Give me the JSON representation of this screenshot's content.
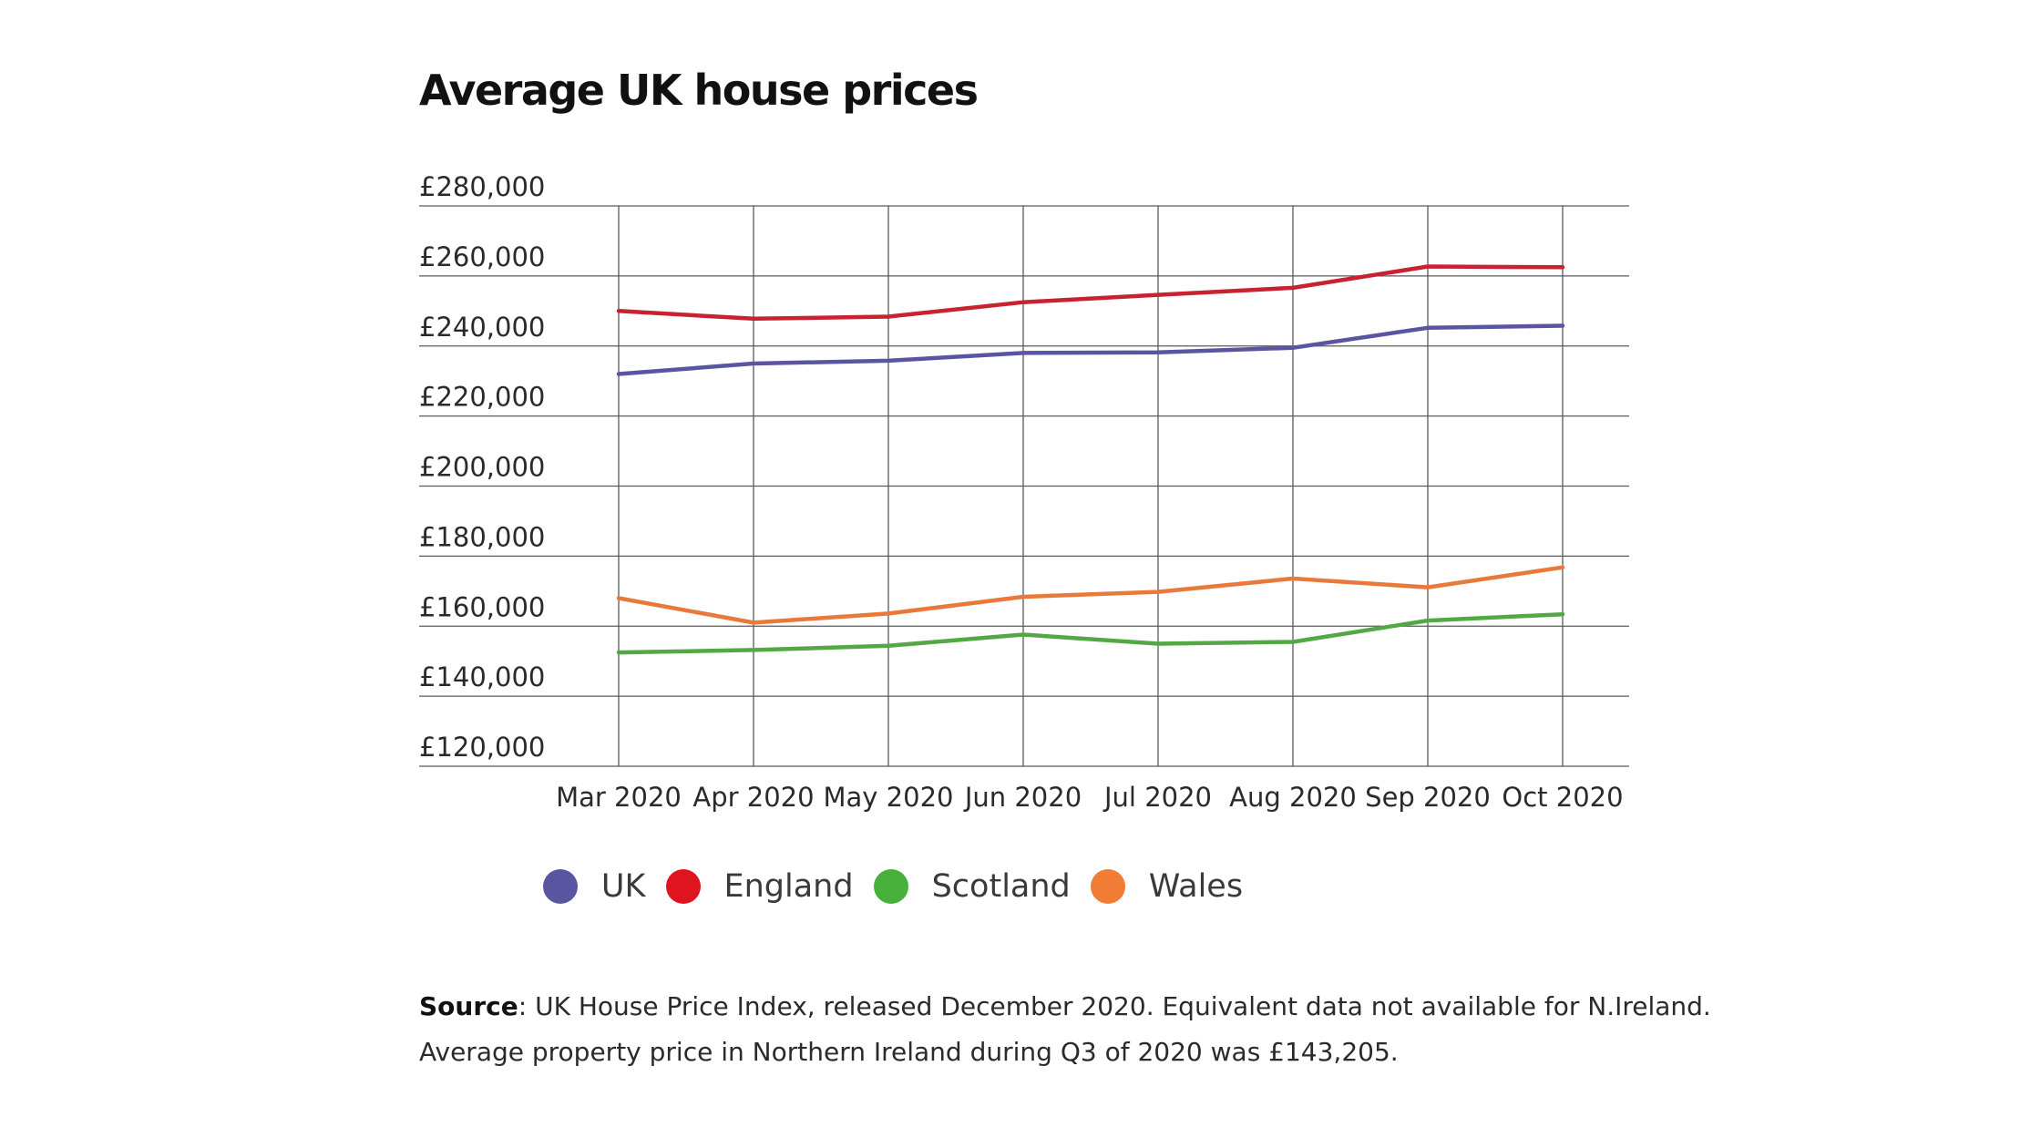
{
  "chart_data": {
    "type": "line",
    "title": "Average UK house prices",
    "xlabel": "",
    "ylabel": "",
    "grid": true,
    "legend_position": "bottom-center",
    "categories": [
      "Mar 2020",
      "Apr 2020",
      "May 2020",
      "Jun 2020",
      "Jul 2020",
      "Aug 2020",
      "Sep 2020",
      "Oct 2020"
    ],
    "ylim": [
      120000,
      280000
    ],
    "yticks": [
      120000,
      140000,
      160000,
      180000,
      200000,
      220000,
      240000,
      260000,
      280000
    ],
    "ytick_labels": [
      "£120,000",
      "£140,000",
      "£160,000",
      "£180,000",
      "£200,000",
      "£220,000",
      "£240,000",
      "£260,000",
      "£280,000"
    ],
    "series": [
      {
        "name": "UK",
        "color": "#5a55a0",
        "values": [
          232000,
          235000,
          235800,
          238000,
          238200,
          239500,
          245200,
          245800
        ]
      },
      {
        "name": "England",
        "color": "#c8212f",
        "values": [
          250000,
          247800,
          248400,
          252500,
          254600,
          256600,
          262700,
          262500
        ]
      },
      {
        "name": "Scotland",
        "color": "#53a845",
        "values": [
          152500,
          153200,
          154400,
          157600,
          155000,
          155500,
          161600,
          163400
        ]
      },
      {
        "name": "Wales",
        "color": "#e8793b",
        "values": [
          168000,
          161000,
          163600,
          168400,
          169800,
          173600,
          171100,
          176800
        ]
      }
    ]
  },
  "legend": {
    "items": [
      {
        "label": "UK",
        "color": "#5a55a0"
      },
      {
        "label": "England",
        "color": "#e0141e"
      },
      {
        "label": "Scotland",
        "color": "#46b03a"
      },
      {
        "label": "Wales",
        "color": "#f07c36"
      }
    ]
  },
  "source": {
    "label": "Source",
    "line1_rest": ": UK House Price Index, released December 2020. Equivalent data not available for N.Ireland.",
    "line2": "Average property price in Northern Ireland during Q3 of 2020 was £143,205."
  }
}
